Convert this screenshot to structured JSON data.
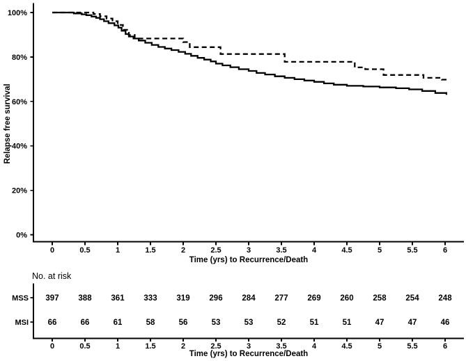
{
  "chart_data": {
    "type": "line",
    "subtype": "kaplan-meier-step",
    "title": "",
    "xlabel": "Time (yrs) to Recurrence/Death",
    "ylabel": "Relapse free survival",
    "xlim": [
      0,
      6
    ],
    "ylim": [
      0,
      100
    ],
    "grid": false,
    "legend": "none",
    "x_ticks": [
      "0",
      "0.5",
      "1",
      "1.5",
      "2",
      "2.5",
      "3",
      "3.5",
      "4",
      "4.5",
      "5",
      "5.5",
      "6"
    ],
    "x_tick_values": [
      0,
      0.5,
      1,
      1.5,
      2,
      2.5,
      3,
      3.5,
      4,
      4.5,
      5,
      5.5,
      6
    ],
    "y_ticks": [
      "0%",
      "20%",
      "40%",
      "60%",
      "80%",
      "100%"
    ],
    "y_tick_values": [
      0,
      20,
      40,
      60,
      80,
      100
    ],
    "colors": {
      "foreground": "#000000",
      "background": "#ffffff"
    },
    "series": [
      {
        "name": "MSS",
        "line_style": "solid",
        "color": "#000000",
        "points": [
          [
            0,
            100
          ],
          [
            0.28,
            100
          ],
          [
            0.33,
            99.6
          ],
          [
            0.45,
            99.2
          ],
          [
            0.52,
            98.8
          ],
          [
            0.6,
            98.2
          ],
          [
            0.67,
            97.6
          ],
          [
            0.73,
            97.0
          ],
          [
            0.79,
            96.1
          ],
          [
            0.86,
            95.2
          ],
          [
            0.95,
            94.2
          ],
          [
            1.01,
            93.2
          ],
          [
            1.06,
            91.8
          ],
          [
            1.12,
            90.3
          ],
          [
            1.17,
            89.2
          ],
          [
            1.24,
            88.3
          ],
          [
            1.32,
            87.4
          ],
          [
            1.42,
            86.4
          ],
          [
            1.52,
            85.4
          ],
          [
            1.62,
            84.5
          ],
          [
            1.72,
            83.8
          ],
          [
            1.82,
            83.1
          ],
          [
            1.93,
            82.3
          ],
          [
            2.03,
            81.4
          ],
          [
            2.12,
            80.5
          ],
          [
            2.22,
            79.6
          ],
          [
            2.32,
            78.8
          ],
          [
            2.42,
            78.0
          ],
          [
            2.5,
            77.0
          ],
          [
            2.6,
            76.2
          ],
          [
            2.72,
            75.4
          ],
          [
            2.85,
            74.5
          ],
          [
            3.0,
            73.7
          ],
          [
            3.12,
            72.8
          ],
          [
            3.25,
            72.1
          ],
          [
            3.4,
            71.3
          ],
          [
            3.55,
            70.6
          ],
          [
            3.7,
            70.0
          ],
          [
            3.85,
            69.4
          ],
          [
            4.0,
            68.8
          ],
          [
            4.15,
            68.1
          ],
          [
            4.3,
            67.5
          ],
          [
            4.5,
            67.0
          ],
          [
            4.75,
            66.7
          ],
          [
            5.0,
            66.3
          ],
          [
            5.25,
            65.9
          ],
          [
            5.45,
            65.4
          ],
          [
            5.65,
            64.7
          ],
          [
            5.85,
            63.8
          ],
          [
            6.02,
            63.0
          ]
        ]
      },
      {
        "name": "MSI",
        "line_style": "dashed",
        "color": "#000000",
        "points": [
          [
            0,
            100
          ],
          [
            0.55,
            100
          ],
          [
            0.63,
            99.3
          ],
          [
            0.73,
            98.3
          ],
          [
            0.83,
            97.3
          ],
          [
            0.92,
            96.1
          ],
          [
            1.0,
            94.4
          ],
          [
            1.08,
            92.2
          ],
          [
            1.17,
            89.9
          ],
          [
            1.26,
            88.3
          ],
          [
            1.93,
            88.3
          ],
          [
            2.0,
            86.7
          ],
          [
            2.1,
            84.4
          ],
          [
            2.48,
            84.4
          ],
          [
            2.57,
            81.3
          ],
          [
            3.46,
            81.3
          ],
          [
            3.55,
            77.8
          ],
          [
            4.52,
            77.8
          ],
          [
            4.62,
            75.3
          ],
          [
            4.78,
            74.5
          ],
          [
            4.98,
            74.5
          ],
          [
            5.06,
            71.9
          ],
          [
            5.58,
            71.9
          ],
          [
            5.67,
            70.6
          ],
          [
            5.95,
            69.8
          ],
          [
            6.03,
            69.7
          ]
        ]
      }
    ],
    "risk_table": {
      "title": "No. at risk",
      "xlabel": "Time (yrs) to Recurrence/Death",
      "time_points": [
        0,
        0.5,
        1,
        1.5,
        2,
        2.5,
        3,
        3.5,
        4,
        4.5,
        5,
        5.5,
        6
      ],
      "rows": [
        {
          "label": "MSS",
          "values": [
            397,
            388,
            361,
            333,
            319,
            296,
            284,
            277,
            269,
            260,
            258,
            254,
            248
          ]
        },
        {
          "label": "MSI",
          "values": [
            66,
            66,
            61,
            58,
            56,
            53,
            53,
            52,
            51,
            51,
            47,
            47,
            46
          ]
        }
      ]
    }
  }
}
